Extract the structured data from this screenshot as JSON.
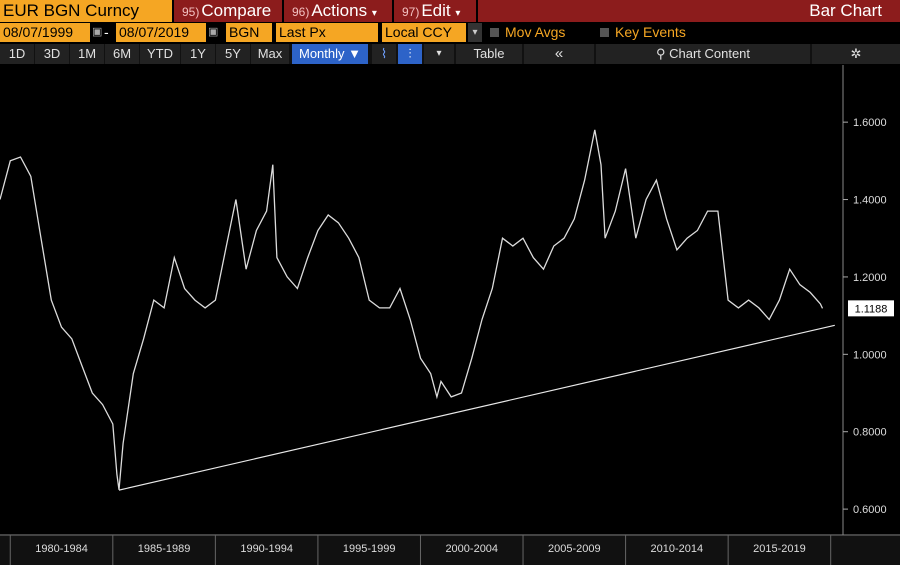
{
  "toolbar": {
    "security": "EUR BGN Curncy",
    "menus": [
      {
        "num": "95)",
        "label": "Compare"
      },
      {
        "num": "96)",
        "label": "Actions"
      },
      {
        "num": "97)",
        "label": "Edit"
      }
    ],
    "view": "Bar Chart",
    "start_date": "08/07/1999",
    "end_date": "08/07/2019",
    "currency": "BGN",
    "price": "Last Px",
    "ccy": "Local CCY",
    "toggles": [
      "Mov Avgs",
      "Key Events"
    ],
    "periods": [
      "1D",
      "3D",
      "1M",
      "6M",
      "YTD",
      "1Y",
      "5Y",
      "Max"
    ],
    "frequency": "Monthly ▼",
    "table": "Table",
    "chart_content": "Chart Content"
  },
  "chart_data": {
    "type": "line",
    "xlim": [
      1979.5,
      2020.6
    ],
    "ylim": [
      0.546,
      1.696
    ],
    "xticks": [
      {
        "value": 1980,
        "label": "1980-1984"
      },
      {
        "value": 1985,
        "label": "1985-1989"
      },
      {
        "value": 1990,
        "label": "1990-1994"
      },
      {
        "value": 1995,
        "label": "1995-1999"
      },
      {
        "value": 2000,
        "label": "2000-2004"
      },
      {
        "value": 2005,
        "label": "2005-2009"
      },
      {
        "value": 2010,
        "label": "2010-2014"
      },
      {
        "value": 2015,
        "label": "2015-2019"
      },
      {
        "value": 2020,
        "label": null
      }
    ],
    "yticks": [
      {
        "value": 0.6,
        "label": "0.6000"
      },
      {
        "value": 0.8,
        "label": "0.8000"
      },
      {
        "value": 1.0,
        "label": "1.0000"
      },
      {
        "value": 1.2,
        "label": "1.2000"
      },
      {
        "value": 1.4,
        "label": "1.4000"
      },
      {
        "value": 1.6,
        "label": "1.6000"
      }
    ],
    "series": [
      {
        "color": "#dcdcdc",
        "x": [
          1979.5,
          1980,
          1980.5,
          1981,
          1981.5,
          1982,
          1982.5,
          1983,
          1983.5,
          1984,
          1984.5,
          1985,
          1985.2,
          1985.3,
          1985.5,
          1986,
          1986.5,
          1987,
          1987.5,
          1988,
          1988.5,
          1989,
          1989.5,
          1990,
          1990.5,
          1991,
          1991.5,
          1992,
          1992.5,
          1992.8,
          1993,
          1993.5,
          1994,
          1994.5,
          1995,
          1995.5,
          1996,
          1996.5,
          1997,
          1997.5,
          1998,
          1998.5,
          1999,
          1999.5,
          2000,
          2000.5,
          2000.8,
          2001,
          2001.5,
          2002,
          2002.5,
          2003,
          2003.5,
          2004,
          2004.5,
          2005,
          2005.5,
          2006,
          2006.5,
          2007,
          2007.5,
          2008,
          2008.5,
          2008.8,
          2009,
          2009.5,
          2010,
          2010.5,
          2011,
          2011.5,
          2012,
          2012.5,
          2013,
          2013.5,
          2014,
          2014.5,
          2015,
          2015.5,
          2016,
          2016.5,
          2017,
          2017.5,
          2018,
          2018.5,
          2019,
          2019.5,
          2019.6
        ],
        "values": [
          1.4,
          1.5,
          1.51,
          1.46,
          1.3,
          1.14,
          1.07,
          1.04,
          0.97,
          0.9,
          0.87,
          0.82,
          0.69,
          0.65,
          0.77,
          0.95,
          1.04,
          1.14,
          1.12,
          1.25,
          1.17,
          1.14,
          1.12,
          1.14,
          1.27,
          1.4,
          1.22,
          1.32,
          1.37,
          1.49,
          1.25,
          1.2,
          1.17,
          1.25,
          1.32,
          1.36,
          1.34,
          1.3,
          1.25,
          1.14,
          1.12,
          1.12,
          1.17,
          1.09,
          0.99,
          0.95,
          0.89,
          0.93,
          0.89,
          0.9,
          0.99,
          1.09,
          1.17,
          1.3,
          1.28,
          1.3,
          1.25,
          1.22,
          1.28,
          1.3,
          1.35,
          1.45,
          1.58,
          1.49,
          1.3,
          1.37,
          1.48,
          1.3,
          1.4,
          1.45,
          1.35,
          1.27,
          1.3,
          1.32,
          1.37,
          1.37,
          1.14,
          1.12,
          1.14,
          1.12,
          1.09,
          1.14,
          1.22,
          1.18,
          1.16,
          1.13,
          1.1188
        ]
      }
    ],
    "trendline": {
      "color": "#e8e8e8",
      "x": [
        1985.3,
        2020.2
      ],
      "values": [
        0.649,
        1.075
      ]
    },
    "last_value": 1.1188
  }
}
